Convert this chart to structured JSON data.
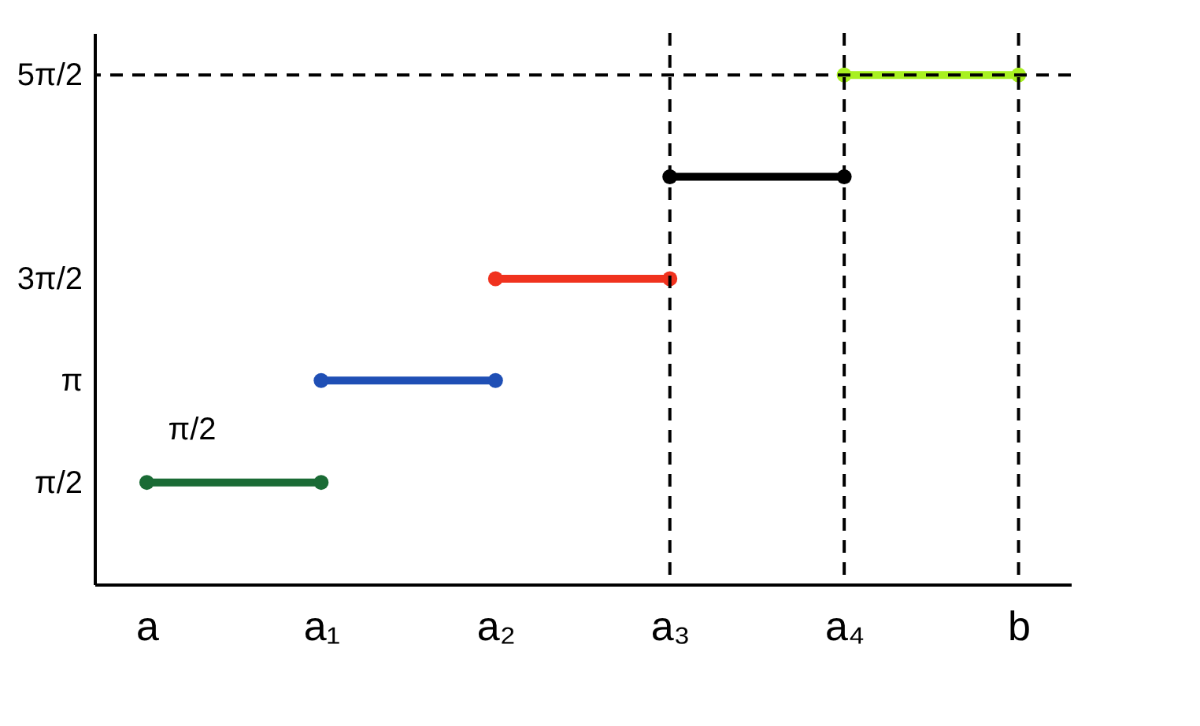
{
  "chart_data": {
    "type": "line",
    "marker": "circle",
    "grid": false,
    "categories": [
      "a",
      "a₁",
      "a₂",
      "a₃",
      "a₄",
      "b"
    ],
    "ylim": [
      0,
      8.5
    ],
    "yticks": [
      {
        "value": 1.5708,
        "label": "π/2"
      },
      {
        "value": 3.1416,
        "label": "π"
      },
      {
        "value": 4.7124,
        "label": "3π/2"
      },
      {
        "value": 7.854,
        "label": "5π/2"
      }
    ],
    "series": [
      {
        "color": "#1a6b35",
        "values": [
          1.5708,
          1.5708,
          null,
          null,
          null,
          null
        ]
      },
      {
        "color": "#1f4fb5",
        "values": [
          null,
          3.1416,
          3.1416,
          null,
          null,
          null
        ]
      },
      {
        "color": "#f0321e",
        "values": [
          null,
          null,
          4.7124,
          4.7124,
          null,
          null
        ]
      },
      {
        "color": "#000000",
        "values": [
          null,
          null,
          null,
          6.2832,
          6.2832,
          null
        ]
      },
      {
        "color": "#a8f020",
        "values": [
          null,
          null,
          null,
          null,
          7.854,
          7.854
        ]
      }
    ],
    "ref_lines": [
      {
        "axis": "y",
        "value": 7.854,
        "line_style": "dashed",
        "color": "#000000"
      },
      {
        "axis": "x",
        "value": "a₃",
        "line_style": "dashed",
        "color": "#000000"
      },
      {
        "axis": "x",
        "value": "a₄",
        "line_style": "dashed",
        "color": "#000000"
      },
      {
        "axis": "x",
        "value": "b",
        "line_style": "dashed",
        "color": "#000000"
      }
    ],
    "annotations": [
      "π/2"
    ]
  }
}
